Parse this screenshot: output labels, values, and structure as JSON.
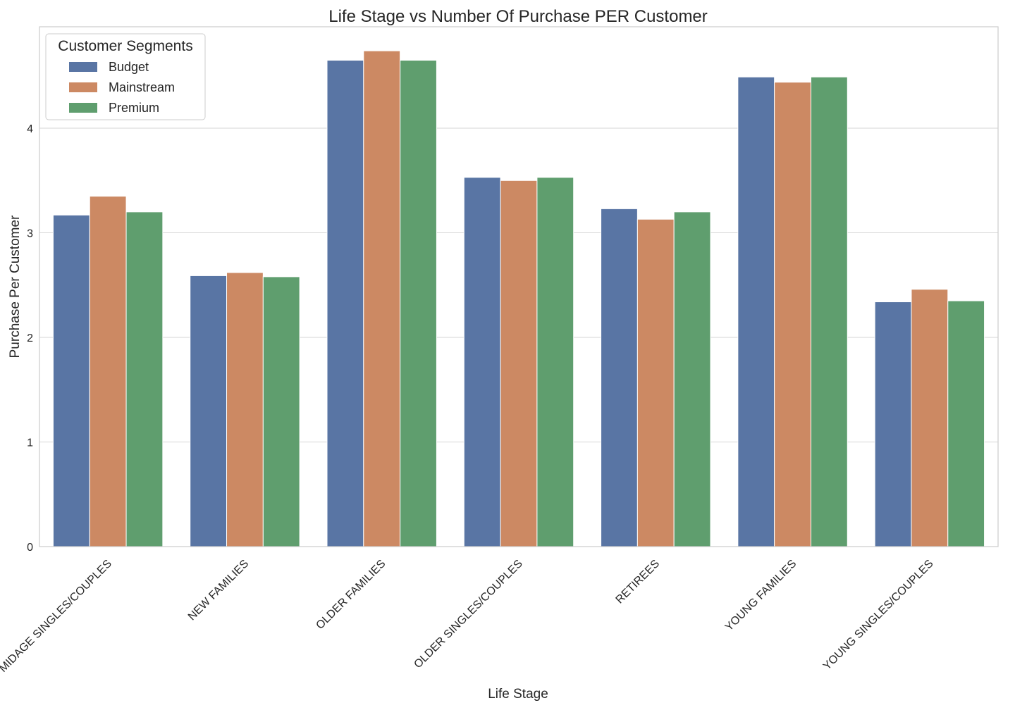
{
  "chart_data": {
    "type": "bar",
    "title": "Life Stage vs Number Of Purchase PER Customer",
    "xlabel": "Life Stage",
    "ylabel": "Purchase Per Customer",
    "ylim": [
      0,
      4.97
    ],
    "yticks": [
      0,
      1,
      2,
      3,
      4
    ],
    "grid": true,
    "legend": {
      "title": "Customer Segments",
      "placement": "top-left"
    },
    "categories": [
      "MIDAGE SINGLES/COUPLES",
      "NEW FAMILIES",
      "OLDER FAMILIES",
      "OLDER SINGLES/COUPLES",
      "RETIREES",
      "YOUNG FAMILIES",
      "YOUNG SINGLES/COUPLES"
    ],
    "series": [
      {
        "name": "Budget",
        "color": "#5975a4",
        "values": [
          3.17,
          2.59,
          4.65,
          3.53,
          3.23,
          4.49,
          2.34
        ]
      },
      {
        "name": "Mainstream",
        "color": "#cc8963",
        "values": [
          3.35,
          2.62,
          4.74,
          3.5,
          3.13,
          4.44,
          2.46
        ]
      },
      {
        "name": "Premium",
        "color": "#5f9e6e",
        "values": [
          3.2,
          2.58,
          4.65,
          3.53,
          3.2,
          4.49,
          2.35
        ]
      }
    ]
  }
}
